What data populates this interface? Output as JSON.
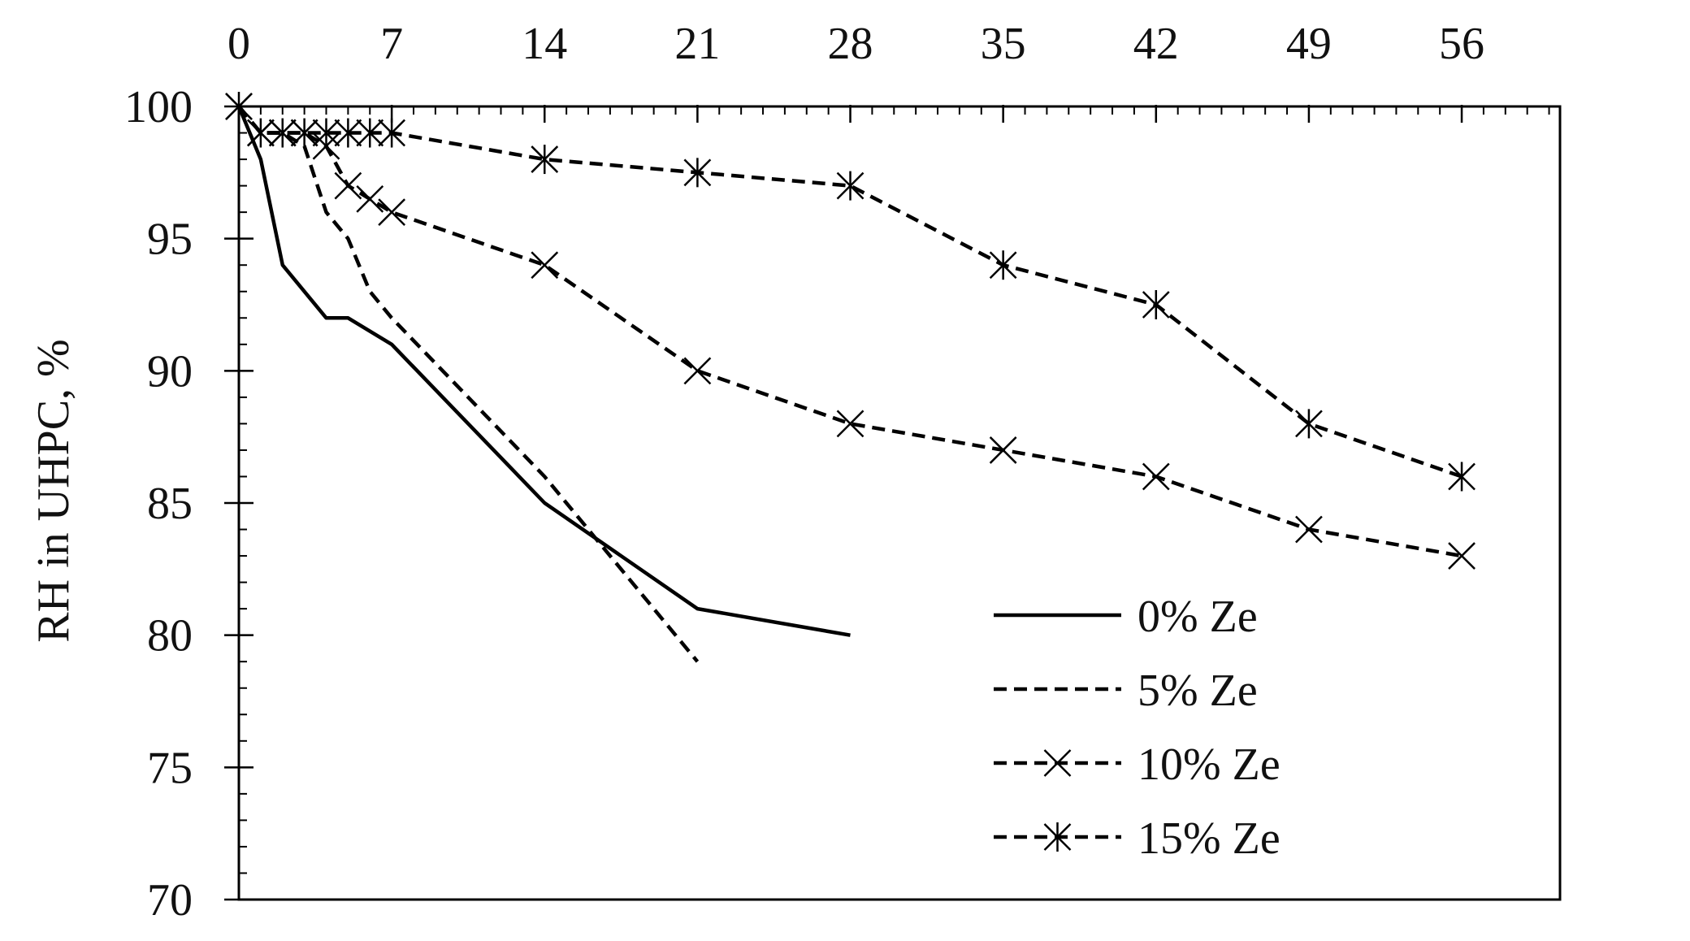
{
  "chart_data": {
    "type": "line",
    "xlabel": "",
    "ylabel": "RH in UHPC, %",
    "xlim": [
      0,
      60.5
    ],
    "ylim": [
      70,
      100
    ],
    "x_ticks": [
      0,
      7,
      14,
      21,
      28,
      35,
      42,
      49,
      56
    ],
    "x_tick_labels": [
      "0",
      "7",
      "14",
      "21",
      "28",
      "35",
      "42",
      "49",
      "56"
    ],
    "y_ticks": [
      70,
      75,
      80,
      85,
      90,
      95,
      100
    ],
    "y_tick_labels": [
      "70",
      "75",
      "80",
      "85",
      "90",
      "95",
      "100"
    ],
    "x_axis_position": "top",
    "grid": false,
    "legend_position": "bottom-right",
    "series": [
      {
        "name": "0% Ze",
        "style": "solid",
        "marker": "none",
        "x": [
          0,
          1,
          2,
          3,
          4,
          5,
          7,
          14,
          21,
          28
        ],
        "y": [
          100,
          98,
          94,
          93,
          92,
          92,
          91,
          85,
          81,
          80
        ]
      },
      {
        "name": "5% Ze",
        "style": "dashed",
        "marker": "none",
        "x": [
          0,
          1,
          2,
          3,
          4,
          5,
          6,
          7,
          14,
          21
        ],
        "y": [
          100,
          99,
          99,
          98.5,
          96,
          95,
          93,
          92,
          86,
          79
        ]
      },
      {
        "name": "10% Ze",
        "style": "dashed",
        "marker": "x",
        "x": [
          0,
          1,
          2,
          3,
          4,
          5,
          6,
          7,
          14,
          21,
          28,
          35,
          42,
          49,
          56
        ],
        "y": [
          100,
          99,
          99,
          99,
          98.5,
          97,
          96.5,
          96,
          94,
          90,
          88,
          87,
          86,
          84,
          83
        ]
      },
      {
        "name": "15% Ze",
        "style": "dashed",
        "marker": "asterisk",
        "x": [
          0,
          1,
          2,
          3,
          4,
          5,
          6,
          7,
          14,
          21,
          28,
          35,
          42,
          49,
          56
        ],
        "y": [
          100,
          99,
          99,
          99,
          99,
          99,
          99,
          99,
          98,
          97.5,
          97,
          94,
          92.5,
          88,
          86
        ]
      }
    ]
  }
}
